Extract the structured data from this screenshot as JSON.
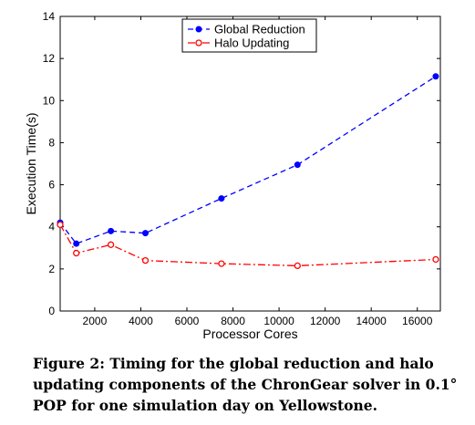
{
  "chart_data": {
    "type": "line",
    "title": "",
    "xlabel": "Processor Cores",
    "ylabel": "Execution Time(s)",
    "xlim": [
      500,
      17000
    ],
    "ylim": [
      0,
      14
    ],
    "x_ticks": [
      2000,
      4000,
      6000,
      8000,
      10000,
      12000,
      14000,
      16000
    ],
    "y_ticks": [
      0,
      2,
      4,
      6,
      8,
      10,
      12,
      14
    ],
    "grid": false,
    "legend_position": "top-center",
    "series": [
      {
        "name": "Global Reduction",
        "color": "#0000ff",
        "line_style": "dashed",
        "marker": "filled-circle",
        "x": [
          470,
          1200,
          2700,
          4200,
          7500,
          10800,
          16800
        ],
        "y": [
          4.2,
          3.2,
          3.8,
          3.7,
          5.35,
          6.95,
          11.15
        ]
      },
      {
        "name": "Halo Updating",
        "color": "#ff0000",
        "line_style": "dash-dot",
        "marker": "open-circle",
        "x": [
          470,
          1200,
          2700,
          4200,
          7500,
          10800,
          16800
        ],
        "y": [
          4.1,
          2.75,
          3.15,
          2.4,
          2.25,
          2.15,
          2.45
        ]
      }
    ]
  },
  "caption": "Figure 2: Timing for the global reduction and halo updating components of the ChronGear solver in 0.1° POP for one simulation day on Yellowstone."
}
